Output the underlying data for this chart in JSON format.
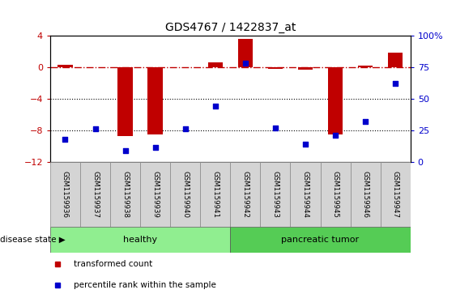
{
  "title": "GDS4767 / 1422837_at",
  "samples": [
    "GSM1159936",
    "GSM1159937",
    "GSM1159938",
    "GSM1159939",
    "GSM1159940",
    "GSM1159941",
    "GSM1159942",
    "GSM1159943",
    "GSM1159944",
    "GSM1159945",
    "GSM1159946",
    "GSM1159947"
  ],
  "transformed_count": [
    0.3,
    -0.05,
    -8.8,
    -8.5,
    -0.05,
    0.6,
    3.5,
    -0.2,
    -0.3,
    -8.5,
    0.2,
    1.8
  ],
  "percentile_rank": [
    18,
    26,
    9,
    11,
    26,
    44,
    78,
    27,
    14,
    21,
    32,
    62
  ],
  "bar_color": "#c00000",
  "dot_color": "#0000cc",
  "groups": [
    {
      "label": "healthy",
      "start": 0,
      "end": 6,
      "color": "#90ee90"
    },
    {
      "label": "pancreatic tumor",
      "start": 6,
      "end": 12,
      "color": "#55cc55"
    }
  ],
  "ylim_left": [
    -12,
    4
  ],
  "ylim_right": [
    0,
    100
  ],
  "yticks_left": [
    4,
    0,
    -4,
    -8,
    -12
  ],
  "yticks_right": [
    100,
    75,
    50,
    25,
    0
  ],
  "hline_y": 0,
  "dotted_lines": [
    -4,
    -8
  ],
  "sample_box_color": "#d4d4d4",
  "legend": [
    {
      "label": "transformed count",
      "color": "#c00000"
    },
    {
      "label": "percentile rank within the sample",
      "color": "#0000cc"
    }
  ]
}
